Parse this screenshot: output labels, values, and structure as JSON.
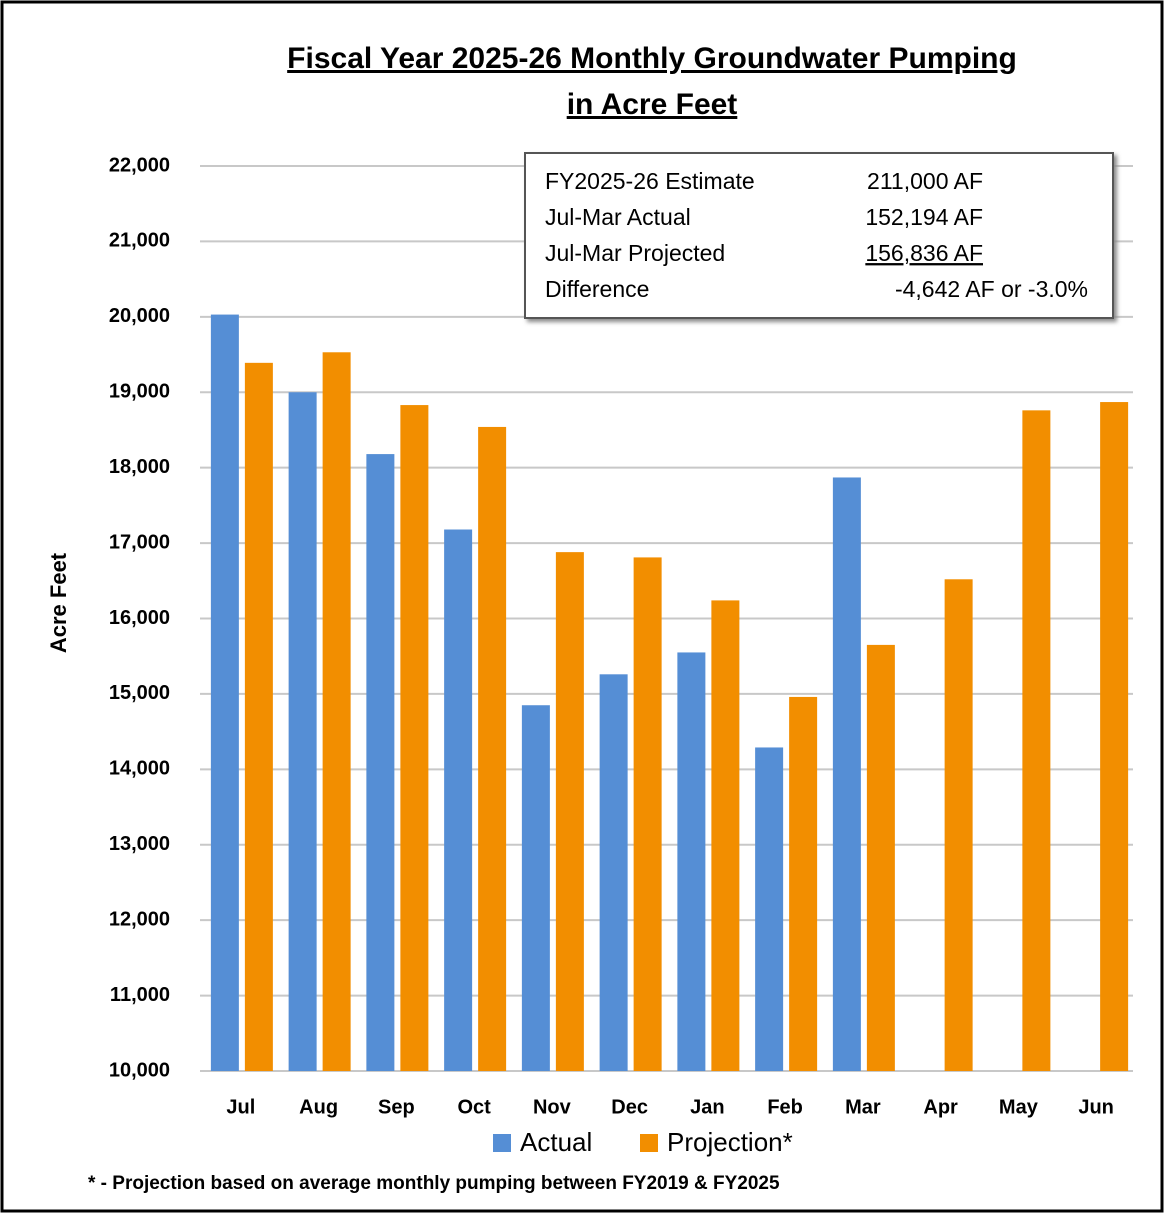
{
  "chart_data": {
    "type": "bar",
    "title": "Fiscal Year 2025-26 Monthly Groundwater Pumping in Acre Feet",
    "y_label": "Acre Feet",
    "categories": [
      "Jul",
      "Aug",
      "Sep",
      "Oct",
      "Nov",
      "Dec",
      "Jan",
      "Feb",
      "Mar",
      "Apr",
      "May",
      "Jun"
    ],
    "series": [
      {
        "name": "Actual",
        "color": "#558ed5",
        "values": [
          20030,
          19000,
          18180,
          17180,
          14850,
          15260,
          15550,
          14290,
          17870,
          null,
          null,
          null
        ]
      },
      {
        "name": "Projection*",
        "color": "#f28e00",
        "values": [
          19390,
          19530,
          18830,
          18540,
          16880,
          16810,
          16240,
          14960,
          15650,
          16520,
          18760,
          18870
        ]
      }
    ],
    "ylim": [
      10000,
      22000
    ],
    "yticks": [
      {
        "value": 10000,
        "label": "10,000"
      },
      {
        "value": 11000,
        "label": "11,000"
      },
      {
        "value": 12000,
        "label": "12,000"
      },
      {
        "value": 13000,
        "label": "13,000"
      },
      {
        "value": 14000,
        "label": "14,000"
      },
      {
        "value": 15000,
        "label": "15,000"
      },
      {
        "value": 16000,
        "label": "16,000"
      },
      {
        "value": 17000,
        "label": "17,000"
      },
      {
        "value": 18000,
        "label": "18,000"
      },
      {
        "value": 19000,
        "label": "19,000"
      },
      {
        "value": 20000,
        "label": "20,000"
      },
      {
        "value": 21000,
        "label": "21,000"
      },
      {
        "value": 22000,
        "label": "22,000"
      }
    ],
    "grid": true,
    "legend": "bottom",
    "annotation_box": [
      {
        "label": "FY2025-26 Estimate",
        "value": "211,000 AF"
      },
      {
        "label": "Jul-Mar Actual",
        "value": "152,194 AF"
      },
      {
        "label": "Jul-Mar Projected",
        "value": "156,836 AF"
      },
      {
        "label": "Difference",
        "value": "-4,642 AF or -3.0%"
      }
    ],
    "footnote": "* - Projection based on average monthly pumping between FY2019 & FY2025"
  }
}
